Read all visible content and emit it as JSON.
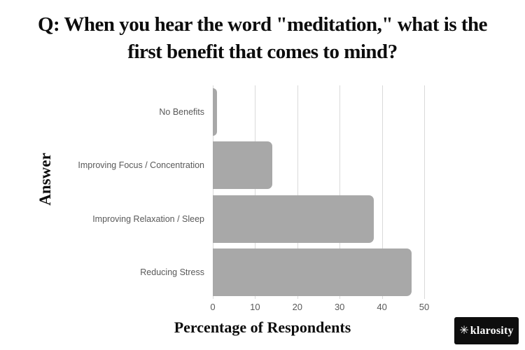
{
  "title": {
    "lines": [
      "Q: When you hear the word \"meditation,\" what is the",
      "first benefit that comes to mind?"
    ]
  },
  "chart_data": {
    "type": "bar",
    "orientation": "horizontal",
    "title": "Q: When you hear the word \"meditation,\" what is the first benefit that comes to mind?",
    "categories": [
      "No Benefits",
      "Improving Focus / Concentration",
      "Improving Relaxation / Sleep",
      "Reducing Stress"
    ],
    "values": [
      1,
      14,
      38,
      47
    ],
    "xlabel": "Percentage of Respondents",
    "ylabel": "Answer",
    "xlim": [
      0,
      50
    ],
    "xticks": [
      0,
      10,
      20,
      30,
      40,
      50
    ],
    "grid": true,
    "legend": false,
    "bar_color": "#a8a8a8",
    "gridline_color": "#d9d9d9",
    "tick_label_color": "#595959"
  },
  "branding": {
    "logo_icon": "✳",
    "logo_text": "klarosity"
  }
}
